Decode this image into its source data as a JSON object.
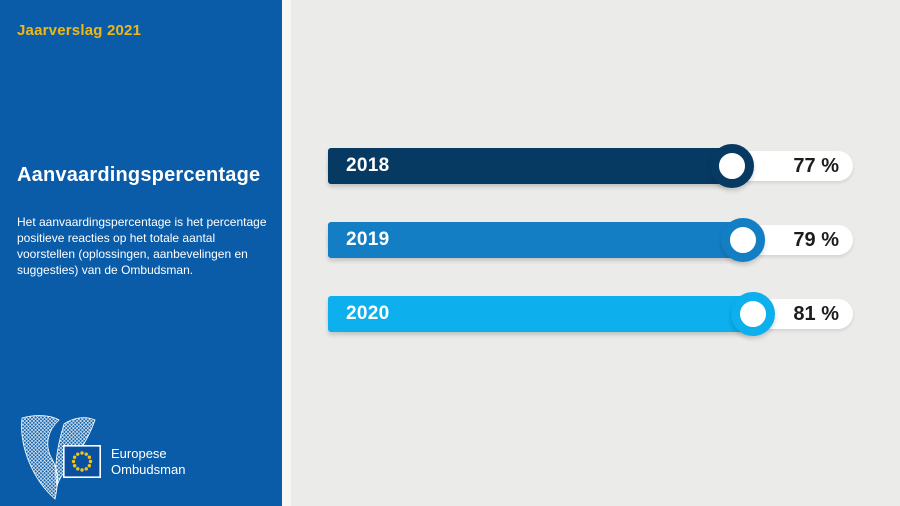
{
  "page": {
    "background_color": "#ebebe9",
    "language": "nl"
  },
  "sidebar": {
    "background_color": "#0a5ca8",
    "eyebrow": "Jaarverslag 2021",
    "eyebrow_color": "#eeb816",
    "title": "Aanvaardingspercentage",
    "description": "Het aanvaardingspercentage is het percentage\npositieve reacties op het totale aantal\nvoorstellen (oplossingen, aanbevelingen en\nsuggesties) van de Ombudsman.",
    "logo": {
      "org_name": "Europese\nOmbudsman",
      "icons": [
        "ombudsman-bird-icon",
        "eu-flag-icon"
      ],
      "flag_blue": "#0b4fa0",
      "star_yellow": "#efc517"
    }
  },
  "chart_data": {
    "type": "bar",
    "orientation": "horizontal",
    "title": "Aanvaardingspercentage",
    "categories": [
      "2018",
      "2019",
      "2020"
    ],
    "values": [
      77,
      79,
      81
    ],
    "unit": "%",
    "display_values": [
      "77 %",
      "79 %",
      "81 %"
    ],
    "bar_colors": [
      "#073a63",
      "#147ec5",
      "#0dafec"
    ],
    "track_color": "#ffffff",
    "value_text_color": "#1d1d1b",
    "xlim": [
      0,
      100
    ],
    "grid": false,
    "legend": false
  }
}
